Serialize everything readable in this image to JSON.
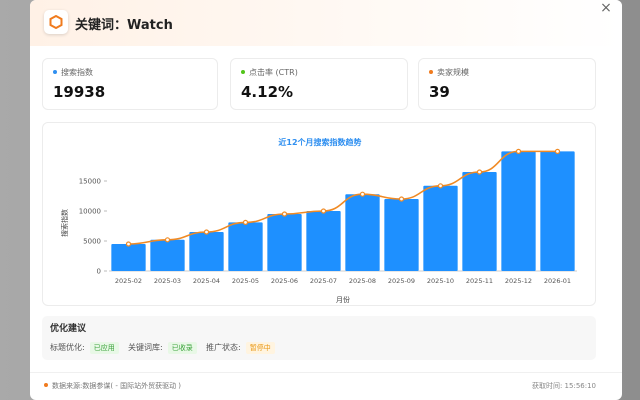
{
  "header": {
    "title": "关键词：Watch",
    "logo_icon": "hexagon-icon",
    "close_label": "×"
  },
  "metrics": [
    {
      "label": "搜索指数",
      "value": "19938",
      "dot_color": "#2f8ff0"
    },
    {
      "label": "点击率 (CTR)",
      "value": "4.12%",
      "dot_color": "#52c41a"
    },
    {
      "label": "卖家规模",
      "value": "39",
      "dot_color": "#f07b1e"
    }
  ],
  "chart_data": {
    "type": "bar",
    "title": "近12个月搜索指数趋势",
    "xlabel": "月份",
    "ylabel": "搜索指数",
    "categories": [
      "2025-02",
      "2025-03",
      "2025-04",
      "2025-05",
      "2025-06",
      "2025-07",
      "2025-08",
      "2025-09",
      "2025-10",
      "2025-11",
      "2025-12",
      "2026-01"
    ],
    "values": [
      4500,
      5200,
      6500,
      8100,
      9500,
      10000,
      12800,
      12000,
      14200,
      16500,
      19938,
      19938
    ],
    "line_values": [
      4500,
      5200,
      6500,
      8100,
      9500,
      10000,
      12800,
      12000,
      14200,
      16500,
      19938,
      19938
    ],
    "yticks": [
      0,
      5000,
      10000,
      15000
    ],
    "ylim": [
      0,
      20000
    ],
    "bar_color": "#1e90ff",
    "line_color": "#f08a24",
    "grid": false
  },
  "suggestions": {
    "title": "优化建议",
    "items": [
      {
        "label": "标题优化:",
        "status": "已应用",
        "color": "green"
      },
      {
        "label": "关键词库:",
        "status": "已收录",
        "color": "green"
      },
      {
        "label": "推广状态:",
        "status": "暂停中",
        "color": "orange"
      }
    ]
  },
  "footer": {
    "source": "数据来源:数据参谋( - 国际站外贸获驱动 )",
    "time": "获取时间: 15:56:10"
  }
}
